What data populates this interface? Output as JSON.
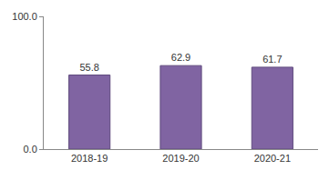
{
  "chart_data": {
    "type": "bar",
    "categories": [
      "2018-19",
      "2019-20",
      "2020-21"
    ],
    "values": [
      55.8,
      62.9,
      61.7
    ],
    "color": "#8064a2",
    "ylim": [
      0,
      100
    ],
    "yticks": [
      {
        "value": 0,
        "label": "0.0"
      },
      {
        "value": 100,
        "label": "100.0"
      }
    ],
    "grid": false,
    "data_labels": true
  }
}
